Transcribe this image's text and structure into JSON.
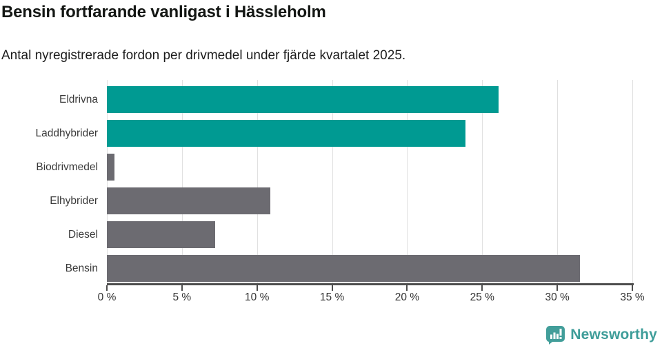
{
  "header": {
    "title": "Bensin fortfarande vanligast i Hässleholm",
    "subtitle": "Antal nyregistrerade fordon per drivmedel under fjärde kvartalet 2025."
  },
  "chart_data": {
    "type": "bar",
    "orientation": "horizontal",
    "title": "Bensin fortfarande vanligast i Hässleholm",
    "subtitle": "Antal nyregistrerade fordon per drivmedel under fjärde kvartalet 2025.",
    "categories": [
      "Eldrivna",
      "Laddhybrider",
      "Biodrivmedel",
      "Elhybrider",
      "Diesel",
      "Bensin"
    ],
    "values": [
      26.1,
      23.9,
      0.5,
      10.9,
      7.2,
      31.5
    ],
    "unit": "%",
    "bar_colors": [
      "#009A92",
      "#009A92",
      "#6C6B71",
      "#6C6B71",
      "#6C6B71",
      "#6C6B71"
    ],
    "highlight_color": "#009A92",
    "default_color": "#6C6B71",
    "xlim": [
      0,
      35
    ],
    "x_ticks": [
      0,
      5,
      10,
      15,
      20,
      25,
      30,
      35
    ],
    "x_tick_suffix": " %",
    "grid": true,
    "gridline_color": "#e0e0e0",
    "axis_color": "#4d4d4d",
    "legend_position": "none"
  },
  "footer": {
    "brand": "Newsworthy",
    "brand_color": "#3E9D99"
  }
}
